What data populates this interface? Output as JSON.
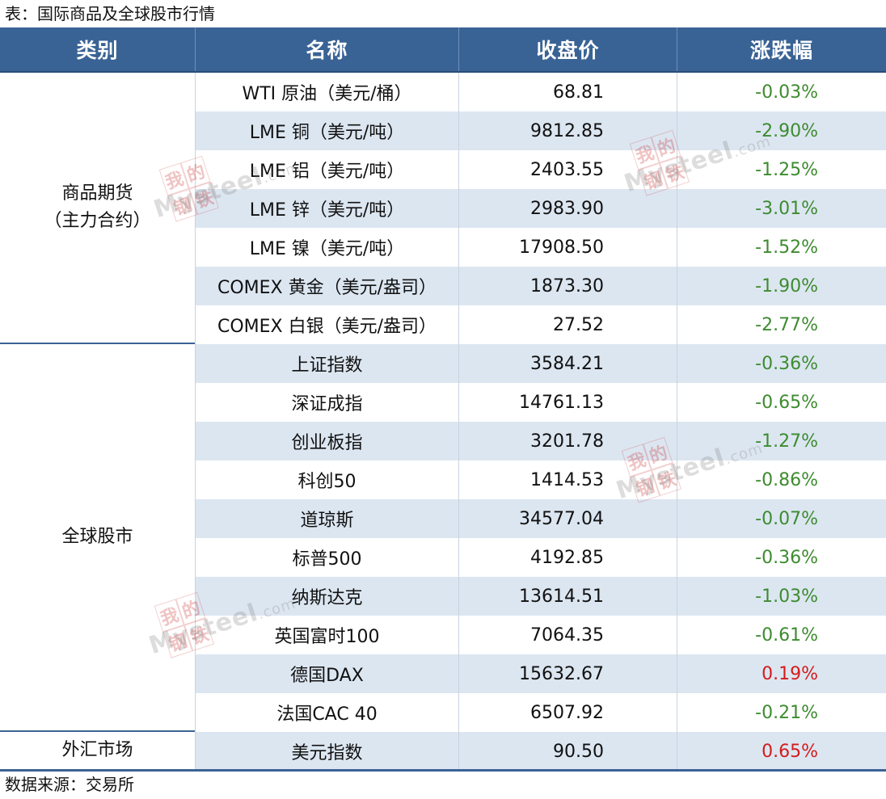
{
  "caption": "表：国际商品及全球股市行情",
  "source": "数据来源：交易所",
  "headers": {
    "category": "类别",
    "name": "名称",
    "price": "收盘价",
    "change": "涨跌幅"
  },
  "colors": {
    "header_bg": "#3a6395",
    "alt_row_bg": "#dce6f1",
    "negative": "#3d8b2f",
    "positive": "#d41c1c"
  },
  "watermark": {
    "seal": [
      "我",
      "的",
      "钢",
      "铁"
    ],
    "brand": "Mysteel",
    "domain": ".com"
  },
  "groups": [
    {
      "category_line1": "商品期货",
      "category_line2": "（主力合约）",
      "rows": [
        {
          "name": "WTI 原油（美元/桶）",
          "price": "68.81",
          "change": "-0.03%",
          "dir": "neg"
        },
        {
          "name": "LME 铜（美元/吨）",
          "price": "9812.85",
          "change": "-2.90%",
          "dir": "neg"
        },
        {
          "name": "LME 铝（美元/吨）",
          "price": "2403.55",
          "change": "-1.25%",
          "dir": "neg"
        },
        {
          "name": "LME 锌（美元/吨）",
          "price": "2983.90",
          "change": "-3.01%",
          "dir": "neg"
        },
        {
          "name": "LME 镍（美元/吨）",
          "price": "17908.50",
          "change": "-1.52%",
          "dir": "neg"
        },
        {
          "name": "COMEX 黄金（美元/盎司）",
          "price": "1873.30",
          "change": "-1.90%",
          "dir": "neg"
        },
        {
          "name": "COMEX 白银（美元/盎司）",
          "price": "27.52",
          "change": "-2.77%",
          "dir": "neg"
        }
      ]
    },
    {
      "category_line1": "全球股市",
      "category_line2": "",
      "rows": [
        {
          "name": "上证指数",
          "price": "3584.21",
          "change": "-0.36%",
          "dir": "neg"
        },
        {
          "name": "深证成指",
          "price": "14761.13",
          "change": "-0.65%",
          "dir": "neg"
        },
        {
          "name": "创业板指",
          "price": "3201.78",
          "change": "-1.27%",
          "dir": "neg"
        },
        {
          "name": "科创50",
          "price": "1414.53",
          "change": "-0.86%",
          "dir": "neg"
        },
        {
          "name": "道琼斯",
          "price": "34577.04",
          "change": "-0.07%",
          "dir": "neg"
        },
        {
          "name": "标普500",
          "price": "4192.85",
          "change": "-0.36%",
          "dir": "neg"
        },
        {
          "name": "纳斯达克",
          "price": "13614.51",
          "change": "-1.03%",
          "dir": "neg"
        },
        {
          "name": "英国富时100",
          "price": "7064.35",
          "change": "-0.61%",
          "dir": "neg"
        },
        {
          "name": "德国DAX",
          "price": "15632.67",
          "change": "0.19%",
          "dir": "pos"
        },
        {
          "name": "法国CAC 40",
          "price": "6507.92",
          "change": "-0.21%",
          "dir": "neg"
        }
      ]
    },
    {
      "category_line1": "外汇市场",
      "category_line2": "",
      "rows": [
        {
          "name": "美元指数",
          "price": "90.50",
          "change": "0.65%",
          "dir": "pos"
        }
      ]
    }
  ]
}
